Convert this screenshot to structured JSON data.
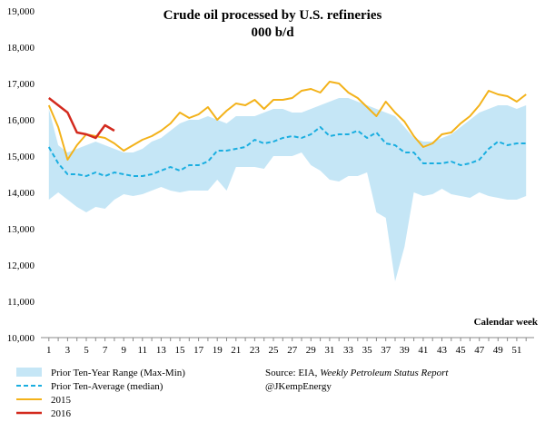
{
  "chart_data": {
    "type": "line",
    "title": "Crude oil processed by U.S. refineries",
    "subtitle": "000 b/d",
    "xlabel": "Calendar week",
    "ylabel": "",
    "xlim": [
      1,
      52
    ],
    "ylim": [
      10000,
      19000
    ],
    "x_ticks": [
      1,
      3,
      5,
      7,
      9,
      11,
      13,
      15,
      17,
      19,
      21,
      23,
      25,
      27,
      29,
      31,
      33,
      35,
      37,
      39,
      41,
      43,
      45,
      47,
      49,
      51
    ],
    "y_ticks": [
      10000,
      11000,
      12000,
      13000,
      14000,
      15000,
      16000,
      17000,
      18000,
      19000
    ],
    "y_tick_labels": [
      "10,000",
      "11,000",
      "12,000",
      "13,000",
      "14,000",
      "15,000",
      "16,000",
      "17,000",
      "18,000",
      "19,000"
    ],
    "grid": false,
    "range_band": {
      "name": "Prior Ten-Year Range (Max-Min)",
      "color": "#c5e6f6",
      "max": [
        16300,
        15300,
        15100,
        15200,
        15300,
        15400,
        15300,
        15200,
        15100,
        15100,
        15200,
        15400,
        15500,
        15700,
        15900,
        16000,
        16000,
        16100,
        16000,
        15900,
        16100,
        16100,
        16100,
        16200,
        16300,
        16300,
        16200,
        16200,
        16300,
        16400,
        16500,
        16600,
        16600,
        16500,
        16400,
        16300,
        16200,
        16100,
        15800,
        15500,
        15400,
        15400,
        15500,
        15600,
        15800,
        16000,
        16200,
        16300,
        16400,
        16400,
        16300,
        16400
      ],
      "min": [
        13800,
        14000,
        13800,
        13600,
        13450,
        13600,
        13550,
        13800,
        13950,
        13900,
        13950,
        14050,
        14150,
        14050,
        14000,
        14050,
        14050,
        14050,
        14350,
        14050,
        14700,
        14700,
        14700,
        14650,
        15000,
        15000,
        15000,
        15100,
        14750,
        14600,
        14350,
        14300,
        14450,
        14450,
        14550,
        13450,
        13300,
        11550,
        12500,
        14000,
        13900,
        13950,
        14100,
        13950,
        13900,
        13850,
        14000,
        13900,
        13850,
        13800,
        13800,
        13900
      ]
    },
    "series": [
      {
        "name": "Prior Ten-Average (median)",
        "color": "#1aaee0",
        "style": "dashed",
        "x": [
          1,
          2,
          3,
          4,
          5,
          6,
          7,
          8,
          9,
          10,
          11,
          12,
          13,
          14,
          15,
          16,
          17,
          18,
          19,
          20,
          21,
          22,
          23,
          24,
          25,
          26,
          27,
          28,
          29,
          30,
          31,
          32,
          33,
          34,
          35,
          36,
          37,
          38,
          39,
          40,
          41,
          42,
          43,
          44,
          45,
          46,
          47,
          48,
          49,
          50,
          51,
          52
        ],
        "values": [
          15250,
          14800,
          14500,
          14500,
          14450,
          14550,
          14450,
          14550,
          14500,
          14450,
          14450,
          14500,
          14600,
          14700,
          14600,
          14750,
          14750,
          14850,
          15150,
          15150,
          15200,
          15250,
          15450,
          15350,
          15400,
          15500,
          15550,
          15500,
          15600,
          15800,
          15550,
          15600,
          15600,
          15700,
          15500,
          15650,
          15350,
          15300,
          15100,
          15100,
          14800,
          14800,
          14800,
          14850,
          14750,
          14800,
          14900,
          15200,
          15400,
          15300,
          15350,
          15350
        ]
      },
      {
        "name": "2015",
        "color": "#f3b21a",
        "style": "solid",
        "x": [
          1,
          2,
          3,
          4,
          5,
          6,
          7,
          8,
          9,
          10,
          11,
          12,
          13,
          14,
          15,
          16,
          17,
          18,
          19,
          20,
          21,
          22,
          23,
          24,
          25,
          26,
          27,
          28,
          29,
          30,
          31,
          32,
          33,
          34,
          35,
          36,
          37,
          38,
          39,
          40,
          41,
          42,
          43,
          44,
          45,
          46,
          47,
          48,
          49,
          50,
          51,
          52
        ],
        "values": [
          16400,
          15800,
          14900,
          15300,
          15600,
          15550,
          15500,
          15350,
          15150,
          15300,
          15450,
          15550,
          15700,
          15900,
          16200,
          16050,
          16150,
          16350,
          16000,
          16250,
          16450,
          16400,
          16550,
          16300,
          16550,
          16550,
          16600,
          16800,
          16850,
          16750,
          17050,
          17000,
          16750,
          16600,
          16350,
          16100,
          16500,
          16200,
          15950,
          15550,
          15250,
          15350,
          15600,
          15650,
          15900,
          16100,
          16400,
          16800,
          16700,
          16650,
          16500,
          16700
        ]
      },
      {
        "name": "2016",
        "color": "#d32a1e",
        "style": "solid",
        "x": [
          1,
          2,
          3,
          4,
          5,
          6,
          7,
          8
        ],
        "values": [
          16600,
          16400,
          16200,
          15650,
          15600,
          15500,
          15850,
          15700
        ]
      }
    ],
    "legend": {
      "placement": "bottom-left",
      "entries": [
        "Prior Ten-Year Range (Max-Min)",
        "Prior Ten-Average (median)",
        "2015",
        "2016"
      ]
    }
  },
  "source": {
    "prefix": "Source: EIA, ",
    "italic": "Weekly Petroleum Status Report",
    "handle": "@JKempEnergy"
  }
}
